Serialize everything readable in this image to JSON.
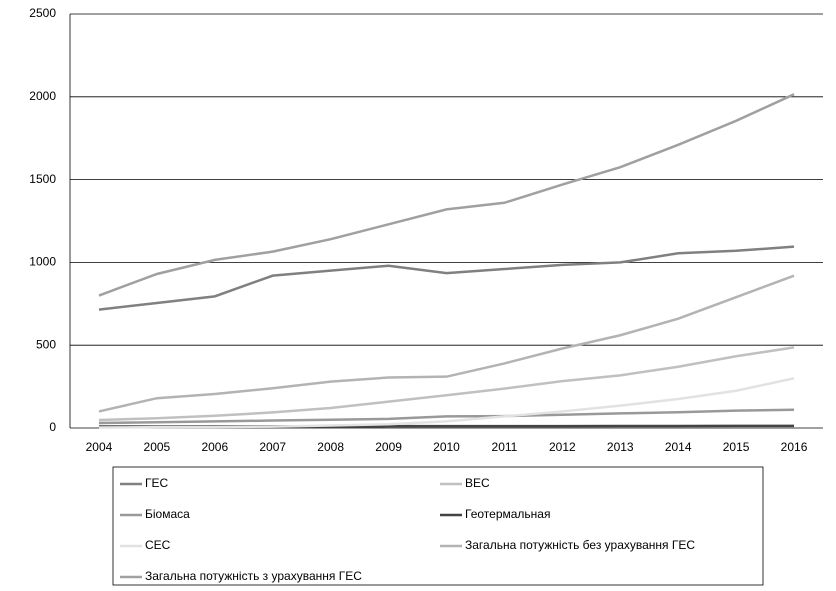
{
  "chart_data": {
    "type": "line",
    "categories": [
      "2004",
      "2005",
      "2006",
      "2007",
      "2008",
      "2009",
      "2010",
      "2011",
      "2012",
      "2013",
      "2014",
      "2015",
      "2016"
    ],
    "series": [
      {
        "name": "ГЕС",
        "color": "#808080",
        "values": [
          715,
          755,
          795,
          920,
          950,
          980,
          935,
          960,
          985,
          1000,
          1055,
          1070,
          1095
        ]
      },
      {
        "name": "ВЕС",
        "color": "#c0c0c0",
        "values": [
          48,
          59,
          74,
          94,
          121,
          159,
          198,
          238,
          283,
          318,
          370,
          433,
          487
        ]
      },
      {
        "name": "Біомаса",
        "color": "#999999",
        "values": [
          30,
          35,
          40,
          45,
          50,
          55,
          70,
          72,
          80,
          88,
          95,
          105,
          110
        ]
      },
      {
        "name": "Геотермальная",
        "color": "#444444",
        "values": [
          9,
          9,
          10,
          10,
          10,
          11,
          11,
          11,
          11,
          12,
          12,
          13,
          13
        ]
      },
      {
        "name": "СЕС",
        "color": "#e2e2e2",
        "values": [
          3,
          5,
          6,
          8,
          15,
          23,
          40,
          70,
          100,
          135,
          175,
          225,
          300
        ]
      },
      {
        "name": "Загальна потужність без урахування ГЕС",
        "color": "#b3b3b3",
        "values": [
          100,
          180,
          205,
          240,
          280,
          305,
          310,
          390,
          480,
          560,
          660,
          790,
          920
        ]
      },
      {
        "name": "Загальна потужність з урахування ГЕС",
        "color": "#a0a0a0",
        "values": [
          800,
          930,
          1015,
          1065,
          1140,
          1230,
          1320,
          1360,
          1470,
          1575,
          1710,
          1855,
          2015
        ]
      }
    ],
    "ylim": [
      0,
      2500
    ],
    "yticks": [
      0,
      500,
      1000,
      1500,
      2000,
      2500
    ],
    "grid": true
  }
}
